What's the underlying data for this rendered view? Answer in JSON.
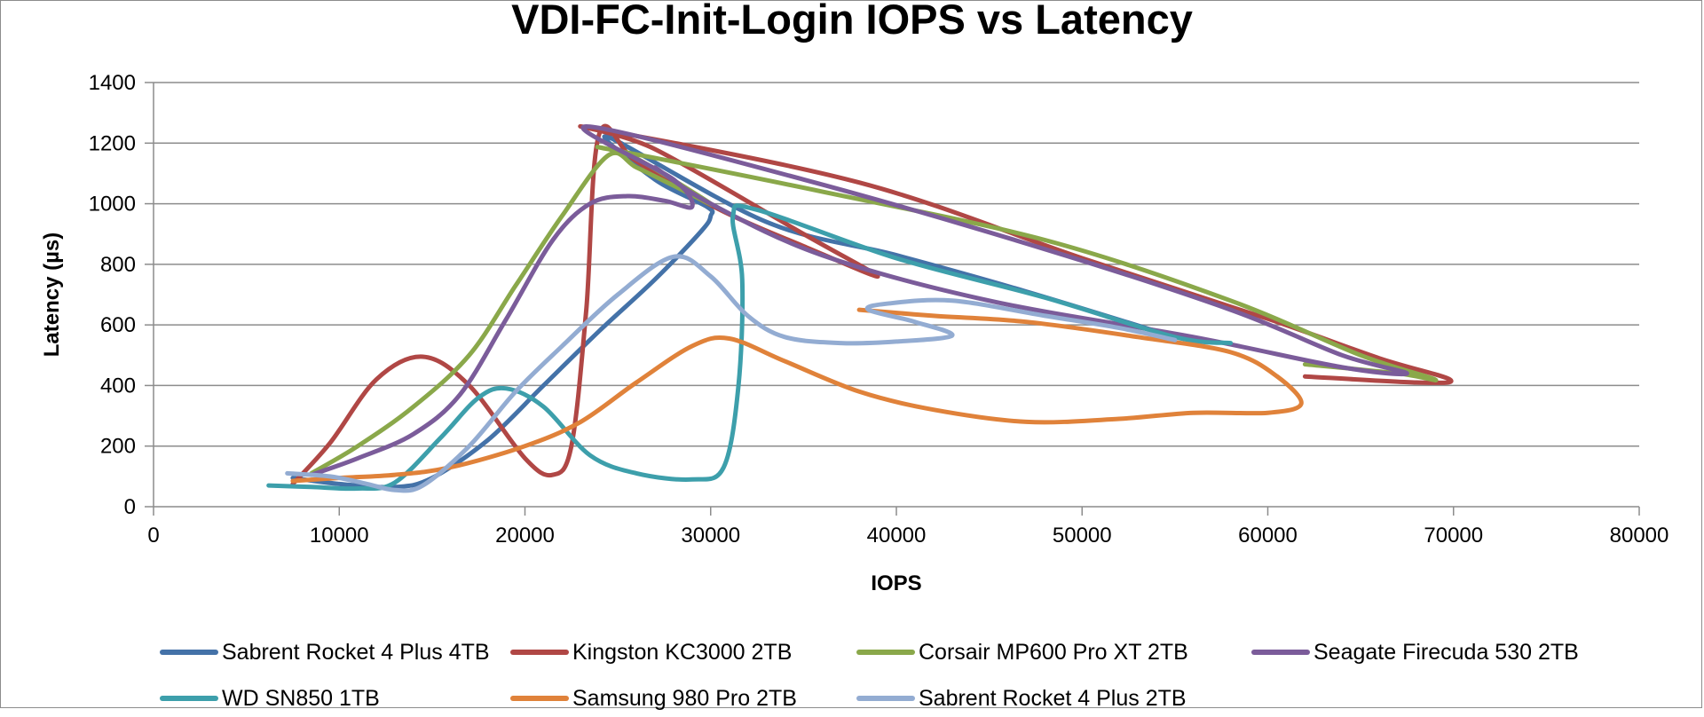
{
  "chart_data": {
    "type": "line",
    "title": "VDI-FC-Init-Login IOPS vs Latency",
    "xlabel": "IOPS",
    "ylabel": "Latency (µs)",
    "xlim": [
      0,
      80000
    ],
    "ylim": [
      0,
      1400
    ],
    "xticks": [
      "0",
      "10000",
      "20000",
      "30000",
      "40000",
      "50000",
      "60000",
      "70000",
      "80000"
    ],
    "yticks": [
      "0",
      "200",
      "400",
      "600",
      "800",
      "1000",
      "1200",
      "1400"
    ],
    "grid": "horizontal",
    "legend": "bottom",
    "series": [
      {
        "name": "Sabrent Rocket 4 Plus 4TB",
        "color": "#4472a8",
        "points": [
          [
            7500,
            95
          ],
          [
            10000,
            75
          ],
          [
            13000,
            65
          ],
          [
            15000,
            95
          ],
          [
            18000,
            220
          ],
          [
            21000,
            400
          ],
          [
            24000,
            580
          ],
          [
            27000,
            750
          ],
          [
            29500,
            910
          ],
          [
            30000,
            960
          ],
          [
            29800,
            990
          ],
          [
            27000,
            1080
          ],
          [
            24500,
            1220
          ],
          [
            33000,
            940
          ],
          [
            40000,
            830
          ],
          [
            47000,
            710
          ],
          [
            55000,
            560
          ]
        ]
      },
      {
        "name": "Kingston KC3000 2TB",
        "color": "#b04745",
        "points": [
          [
            7500,
            75
          ],
          [
            9500,
            210
          ],
          [
            12000,
            420
          ],
          [
            14500,
            495
          ],
          [
            17000,
            400
          ],
          [
            20000,
            160
          ],
          [
            21500,
            105
          ],
          [
            22500,
            200
          ],
          [
            23300,
            650
          ],
          [
            24000,
            1230
          ],
          [
            26000,
            1140
          ],
          [
            30500,
            980
          ],
          [
            35000,
            860
          ],
          [
            39000,
            760
          ],
          [
            35000,
            900
          ],
          [
            27000,
            1180
          ],
          [
            23500,
            1250
          ],
          [
            38000,
            1070
          ],
          [
            50000,
            820
          ],
          [
            60000,
            620
          ],
          [
            66000,
            490
          ],
          [
            69800,
            420
          ],
          [
            68000,
            410
          ],
          [
            62000,
            430
          ]
        ]
      },
      {
        "name": "Corsair MP600 Pro XT 2TB",
        "color": "#8aa84a",
        "points": [
          [
            8500,
            110
          ],
          [
            11000,
            200
          ],
          [
            14000,
            330
          ],
          [
            17000,
            500
          ],
          [
            19500,
            730
          ],
          [
            22000,
            960
          ],
          [
            24500,
            1160
          ],
          [
            26000,
            1120
          ],
          [
            28000,
            1060
          ],
          [
            30000,
            1000
          ],
          [
            26000,
            1150
          ],
          [
            24500,
            1180
          ],
          [
            36000,
            1040
          ],
          [
            48000,
            880
          ],
          [
            58000,
            680
          ],
          [
            65000,
            500
          ],
          [
            69000,
            420
          ],
          [
            67000,
            440
          ],
          [
            62000,
            470
          ]
        ]
      },
      {
        "name": "Seagate Firecuda 530 2TB",
        "color": "#7b5c9a",
        "points": [
          [
            8500,
            105
          ],
          [
            11000,
            160
          ],
          [
            14000,
            240
          ],
          [
            16500,
            370
          ],
          [
            19000,
            620
          ],
          [
            21500,
            880
          ],
          [
            23500,
            1000
          ],
          [
            25500,
            1025
          ],
          [
            27500,
            1010
          ],
          [
            29000,
            990
          ],
          [
            28000,
            1080
          ],
          [
            23300,
            1255
          ],
          [
            35000,
            1080
          ],
          [
            48000,
            850
          ],
          [
            58000,
            650
          ],
          [
            64000,
            500
          ],
          [
            67500,
            440
          ],
          [
            64000,
            460
          ],
          [
            56000,
            560
          ],
          [
            45000,
            680
          ],
          [
            36000,
            830
          ],
          [
            30000,
            1000
          ],
          [
            27000,
            1120
          ]
        ]
      },
      {
        "name": "WD SN850 1TB",
        "color": "#3d9fab",
        "points": [
          [
            6200,
            70
          ],
          [
            8500,
            65
          ],
          [
            11000,
            60
          ],
          [
            13000,
            80
          ],
          [
            15500,
            230
          ],
          [
            17500,
            360
          ],
          [
            19000,
            390
          ],
          [
            21000,
            330
          ],
          [
            23500,
            170
          ],
          [
            26000,
            110
          ],
          [
            29000,
            90
          ],
          [
            30700,
            130
          ],
          [
            31500,
            400
          ],
          [
            31700,
            750
          ],
          [
            31200,
            960
          ],
          [
            32500,
            980
          ],
          [
            40000,
            820
          ],
          [
            48000,
            690
          ],
          [
            55000,
            560
          ],
          [
            58000,
            540
          ]
        ]
      },
      {
        "name": "Samsung 980 Pro 2TB",
        "color": "#e0823a",
        "points": [
          [
            7500,
            85
          ],
          [
            10000,
            95
          ],
          [
            13000,
            105
          ],
          [
            16000,
            130
          ],
          [
            20000,
            200
          ],
          [
            23000,
            280
          ],
          [
            26000,
            410
          ],
          [
            29000,
            530
          ],
          [
            31000,
            555
          ],
          [
            34000,
            480
          ],
          [
            38000,
            380
          ],
          [
            42000,
            320
          ],
          [
            47000,
            280
          ],
          [
            52000,
            290
          ],
          [
            56000,
            310
          ],
          [
            60000,
            310
          ],
          [
            61800,
            340
          ],
          [
            60500,
            430
          ],
          [
            58000,
            510
          ],
          [
            53000,
            560
          ],
          [
            47000,
            610
          ],
          [
            42000,
            630
          ],
          [
            38000,
            650
          ]
        ]
      },
      {
        "name": "Sabrent Rocket 4 Plus 2TB",
        "color": "#93acd2",
        "points": [
          [
            7200,
            110
          ],
          [
            9500,
            100
          ],
          [
            11500,
            75
          ],
          [
            13000,
            55
          ],
          [
            14500,
            70
          ],
          [
            17000,
            200
          ],
          [
            19500,
            380
          ],
          [
            22000,
            530
          ],
          [
            25000,
            700
          ],
          [
            28000,
            825
          ],
          [
            30000,
            760
          ],
          [
            32000,
            630
          ],
          [
            34000,
            560
          ],
          [
            37000,
            540
          ],
          [
            40000,
            545
          ],
          [
            43000,
            565
          ],
          [
            41000,
            610
          ],
          [
            38500,
            650
          ],
          [
            39500,
            670
          ],
          [
            43000,
            680
          ],
          [
            48000,
            630
          ],
          [
            52000,
            590
          ],
          [
            55000,
            550
          ]
        ]
      }
    ]
  }
}
